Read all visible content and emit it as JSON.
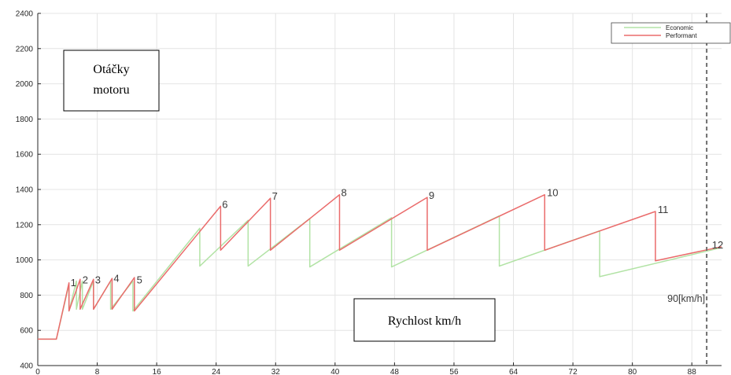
{
  "chart_data": {
    "type": "line",
    "title": "",
    "xlabel": "",
    "ylabel": "",
    "xlim": [
      0,
      92
    ],
    "ylim": [
      400,
      2400
    ],
    "xticks": [
      0,
      8,
      16,
      24,
      32,
      40,
      48,
      56,
      64,
      72,
      80,
      88
    ],
    "yticks": [
      400,
      600,
      800,
      1000,
      1200,
      1400,
      1600,
      1800,
      2000,
      2200,
      2400
    ],
    "grid": true,
    "legend_position": "top-right",
    "colors": {
      "Economic": "#b2e3a5",
      "Performance": "#ea6b6b",
      "reference": "#6e6e6e"
    },
    "series": [
      {
        "name": "Economic",
        "legend_label": "Economic",
        "x": [
          0,
          2.5,
          4.2,
          4.2,
          5.2,
          5.2,
          6.0,
          6.0,
          7.5,
          7.5,
          9.8,
          9.8,
          12.8,
          12.8,
          21.8,
          21.8,
          28.3,
          28.3,
          36.6,
          36.6,
          47.6,
          47.6,
          62.1,
          62.1,
          75.6,
          75.6,
          92.0
        ],
        "y": [
          550,
          550,
          860,
          710,
          880,
          720,
          880,
          720,
          880,
          720,
          880,
          720,
          880,
          710,
          1180,
          965,
          1225,
          965,
          1235,
          960,
          1240,
          960,
          1250,
          965,
          1165,
          905,
          1070
        ]
      },
      {
        "name": "Performance",
        "legend_label": "Performant",
        "x": [
          0,
          2.5,
          4.2,
          4.2,
          5.7,
          5.7,
          7.5,
          7.5,
          10.0,
          10.0,
          13.0,
          13.0,
          24.6,
          24.6,
          31.3,
          31.3,
          40.6,
          40.6,
          52.4,
          52.4,
          68.2,
          68.2,
          83.1,
          83.1,
          92.0
        ],
        "y": [
          550,
          550,
          870,
          710,
          890,
          720,
          890,
          720,
          895,
          720,
          900,
          710,
          1305,
          1055,
          1350,
          1055,
          1370,
          1055,
          1355,
          1055,
          1370,
          1055,
          1275,
          995,
          1075
        ]
      }
    ],
    "gear_labels": [
      {
        "text": "1",
        "x": 4.3,
        "y": 860
      },
      {
        "text": "2",
        "x": 5.9,
        "y": 875
      },
      {
        "text": "3",
        "x": 7.6,
        "y": 875
      },
      {
        "text": "4",
        "x": 10.1,
        "y": 885
      },
      {
        "text": "5",
        "x": 13.2,
        "y": 875
      },
      {
        "text": "6",
        "x": 24.7,
        "y": 1305
      },
      {
        "text": "7",
        "x": 31.4,
        "y": 1350
      },
      {
        "text": "8",
        "x": 40.7,
        "y": 1370
      },
      {
        "text": "9",
        "x": 52.5,
        "y": 1355
      },
      {
        "text": "10",
        "x": 68.4,
        "y": 1370
      },
      {
        "text": "11",
        "x": 83.3,
        "y": 1275
      },
      {
        "text": "12",
        "x": 90.6,
        "y": 1075
      }
    ],
    "reference_line": {
      "x": 90,
      "label": "90[km/h]"
    },
    "annotations": [
      {
        "id": "rpm",
        "lines": [
          "Otáčky",
          "motoru"
        ]
      },
      {
        "id": "speed",
        "lines": [
          "Rychlost km/h"
        ]
      }
    ]
  }
}
